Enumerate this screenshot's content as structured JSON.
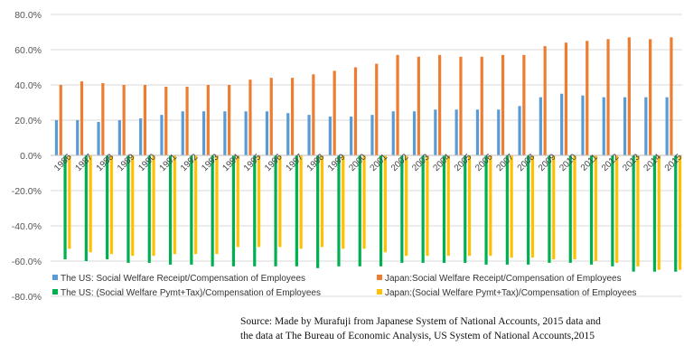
{
  "chart_data": {
    "type": "bar",
    "title": "",
    "xlabel": "",
    "ylabel": "",
    "ylim": [
      -0.8,
      0.8
    ],
    "yticks": [
      -0.8,
      -0.6,
      -0.4,
      -0.2,
      0.0,
      0.2,
      0.4,
      0.6,
      0.8
    ],
    "ytick_labels": [
      "-80.0%",
      "-60.0%",
      "-40.0%",
      "-20.0%",
      "0.0%",
      "20.0%",
      "40.0%",
      "60.0%",
      "80.0%"
    ],
    "grid": true,
    "legend_position": "bottom",
    "categories": [
      "1986",
      "1987",
      "1988",
      "1989",
      "1990",
      "1991",
      "1992",
      "1993",
      "1994",
      "1995",
      "1996",
      "1997",
      "1998",
      "1999",
      "2000",
      "2001",
      "2002",
      "2003",
      "2004",
      "2005",
      "2006",
      "2007",
      "2008",
      "2009",
      "2010",
      "2011",
      "2012",
      "2013",
      "2014",
      "2015"
    ],
    "series": [
      {
        "name": "The US: Social Welfare Receipt/Compensation of Employees",
        "color": "#5b9bd5",
        "values": [
          0.2,
          0.2,
          0.19,
          0.2,
          0.21,
          0.23,
          0.25,
          0.25,
          0.25,
          0.25,
          0.25,
          0.24,
          0.23,
          0.22,
          0.22,
          0.23,
          0.25,
          0.25,
          0.26,
          0.26,
          0.26,
          0.26,
          0.28,
          0.33,
          0.35,
          0.34,
          0.33,
          0.33,
          0.33,
          0.33
        ]
      },
      {
        "name": "Japan:Social Welfare Receipt/Compensation of Employees",
        "color": "#ed7d31",
        "values": [
          0.4,
          0.42,
          0.41,
          0.4,
          0.4,
          0.39,
          0.39,
          0.4,
          0.4,
          0.43,
          0.44,
          0.44,
          0.46,
          0.48,
          0.5,
          0.52,
          0.57,
          0.56,
          0.57,
          0.56,
          0.56,
          0.57,
          0.57,
          0.62,
          0.64,
          0.65,
          0.66,
          0.67,
          0.66,
          0.67
        ]
      },
      {
        "name": "The US: (Social Welfare Pymt+Tax)/Compensation of Employees",
        "color": "#00b050",
        "values": [
          -0.59,
          -0.6,
          -0.59,
          -0.61,
          -0.61,
          -0.62,
          -0.62,
          -0.63,
          -0.63,
          -0.63,
          -0.63,
          -0.63,
          -0.64,
          -0.63,
          -0.63,
          -0.63,
          -0.61,
          -0.61,
          -0.61,
          -0.61,
          -0.62,
          -0.62,
          -0.62,
          -0.61,
          -0.61,
          -0.62,
          -0.63,
          -0.66,
          -0.66,
          -0.66
        ]
      },
      {
        "name": "Japan:(Social Welfare Pymt+Tax)/Compensation of Employees",
        "color": "#ffc000",
        "values": [
          -0.53,
          -0.55,
          -0.56,
          -0.57,
          -0.57,
          -0.56,
          -0.56,
          -0.56,
          -0.52,
          -0.52,
          -0.52,
          -0.53,
          -0.52,
          -0.53,
          -0.53,
          -0.55,
          -0.57,
          -0.57,
          -0.57,
          -0.57,
          -0.57,
          -0.58,
          -0.58,
          -0.59,
          -0.59,
          -0.6,
          -0.61,
          -0.63,
          -0.65,
          -0.65
        ]
      }
    ]
  },
  "source": {
    "line1": "Source: Made by Murafuji from Japanese System of National Accounts, 2015 data and",
    "line2": "the data at The Bureau of Economic Analysis, US System of National Accounts,2015"
  }
}
